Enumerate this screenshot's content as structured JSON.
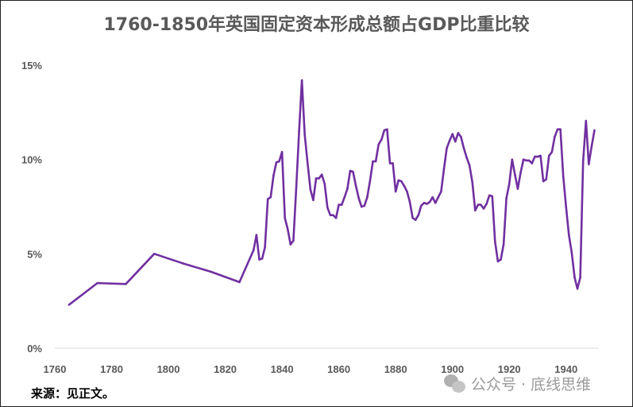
{
  "chart_data": {
    "type": "line",
    "title": "1760-1850年英国固定资本形成总额占GDP比重比较",
    "xlabel": "",
    "ylabel": "",
    "xlim": [
      1760,
      1950
    ],
    "ylim": [
      0,
      15
    ],
    "x_ticks": [
      "1760",
      "1780",
      "1800",
      "1820",
      "1840",
      "1860",
      "1880",
      "1900",
      "1920",
      "1940"
    ],
    "y_ticks": [
      "0%",
      "5%",
      "10%",
      "15%"
    ],
    "grid": false,
    "legend": "none",
    "color": "#7030A0",
    "series": [
      {
        "x": [
          1765,
          1775,
          1785,
          1795,
          1805,
          1815,
          1825,
          1830,
          1831,
          1832,
          1833,
          1834,
          1835,
          1836,
          1837,
          1838,
          1839,
          1840,
          1841,
          1842,
          1843,
          1844,
          1845,
          1846,
          1847,
          1848,
          1849,
          1850,
          1851,
          1852,
          1853,
          1854,
          1855,
          1856,
          1857,
          1858,
          1859,
          1860,
          1861,
          1862,
          1863,
          1864,
          1865,
          1866,
          1867,
          1868,
          1869,
          1870,
          1871,
          1872,
          1873,
          1874,
          1875,
          1876,
          1877,
          1878,
          1879,
          1880,
          1881,
          1882,
          1883,
          1884,
          1885,
          1886,
          1887,
          1888,
          1889,
          1890,
          1891,
          1892,
          1893,
          1894,
          1895,
          1896,
          1897,
          1898,
          1899,
          1900,
          1901,
          1902,
          1903,
          1904,
          1905,
          1906,
          1907,
          1908,
          1909,
          1910,
          1911,
          1912,
          1913,
          1914,
          1915,
          1916,
          1917,
          1918,
          1919,
          1920,
          1921,
          1922,
          1923,
          1924,
          1925,
          1926,
          1927,
          1928,
          1929,
          1930,
          1931,
          1932,
          1933,
          1934,
          1935,
          1936,
          1937,
          1938,
          1939,
          1940,
          1941,
          1942,
          1943,
          1944,
          1945,
          1946,
          1947,
          1948,
          1949,
          1950
        ],
        "values": [
          2.3,
          3.45,
          3.4,
          5.0,
          4.5,
          4.05,
          3.5,
          5.2,
          6.0,
          4.7,
          4.75,
          5.35,
          7.9,
          8.0,
          9.15,
          9.85,
          9.9,
          10.4,
          6.9,
          6.3,
          5.5,
          5.7,
          8.5,
          11.5,
          14.2,
          11.3,
          9.8,
          8.4,
          7.85,
          9.0,
          9.0,
          9.2,
          8.7,
          7.45,
          7.05,
          7.05,
          6.9,
          7.6,
          7.6,
          8.0,
          8.45,
          9.4,
          9.35,
          8.6,
          7.95,
          7.5,
          7.55,
          8.0,
          8.9,
          9.9,
          9.9,
          10.8,
          11.05,
          11.55,
          11.6,
          9.8,
          9.8,
          8.3,
          8.9,
          8.85,
          8.6,
          8.3,
          7.75,
          6.9,
          6.8,
          7.05,
          7.55,
          7.7,
          7.65,
          7.75,
          8.0,
          7.7,
          8.0,
          8.3,
          9.5,
          10.6,
          11.0,
          11.35,
          10.95,
          11.4,
          11.2,
          10.6,
          10.1,
          9.7,
          8.8,
          7.3,
          7.6,
          7.6,
          7.4,
          7.65,
          8.1,
          8.05,
          5.65,
          4.6,
          4.7,
          5.5,
          7.95,
          8.7,
          10.0,
          9.2,
          8.45,
          9.3,
          10.0,
          9.95,
          9.95,
          9.8,
          10.15,
          10.15,
          10.2,
          8.85,
          8.95,
          10.2,
          10.4,
          11.2,
          11.6,
          11.6,
          9.1,
          7.5,
          6.0,
          5.05,
          3.75,
          3.15,
          3.75,
          9.9,
          12.05,
          9.75,
          10.7,
          11.55
        ]
      }
    ]
  },
  "source": "来源：见正文。",
  "watermark": "公众号 · 底线思维",
  "watermark_icon": "wechat-icon"
}
